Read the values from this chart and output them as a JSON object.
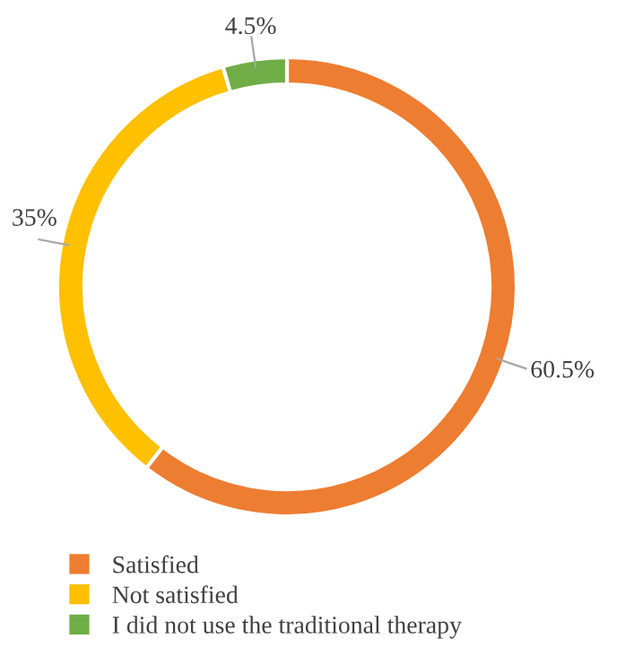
{
  "chart_data": {
    "type": "donut",
    "categories": [
      "Satisfied",
      "Not satisfied",
      "I did not use the traditional therapy"
    ],
    "values": [
      60.5,
      35,
      4.5
    ],
    "colors": [
      "#ed7d31",
      "#ffc000",
      "#70ad47"
    ],
    "value_labels": [
      "60.5%",
      "35%",
      "4.5%"
    ],
    "legend": "bottom left"
  }
}
